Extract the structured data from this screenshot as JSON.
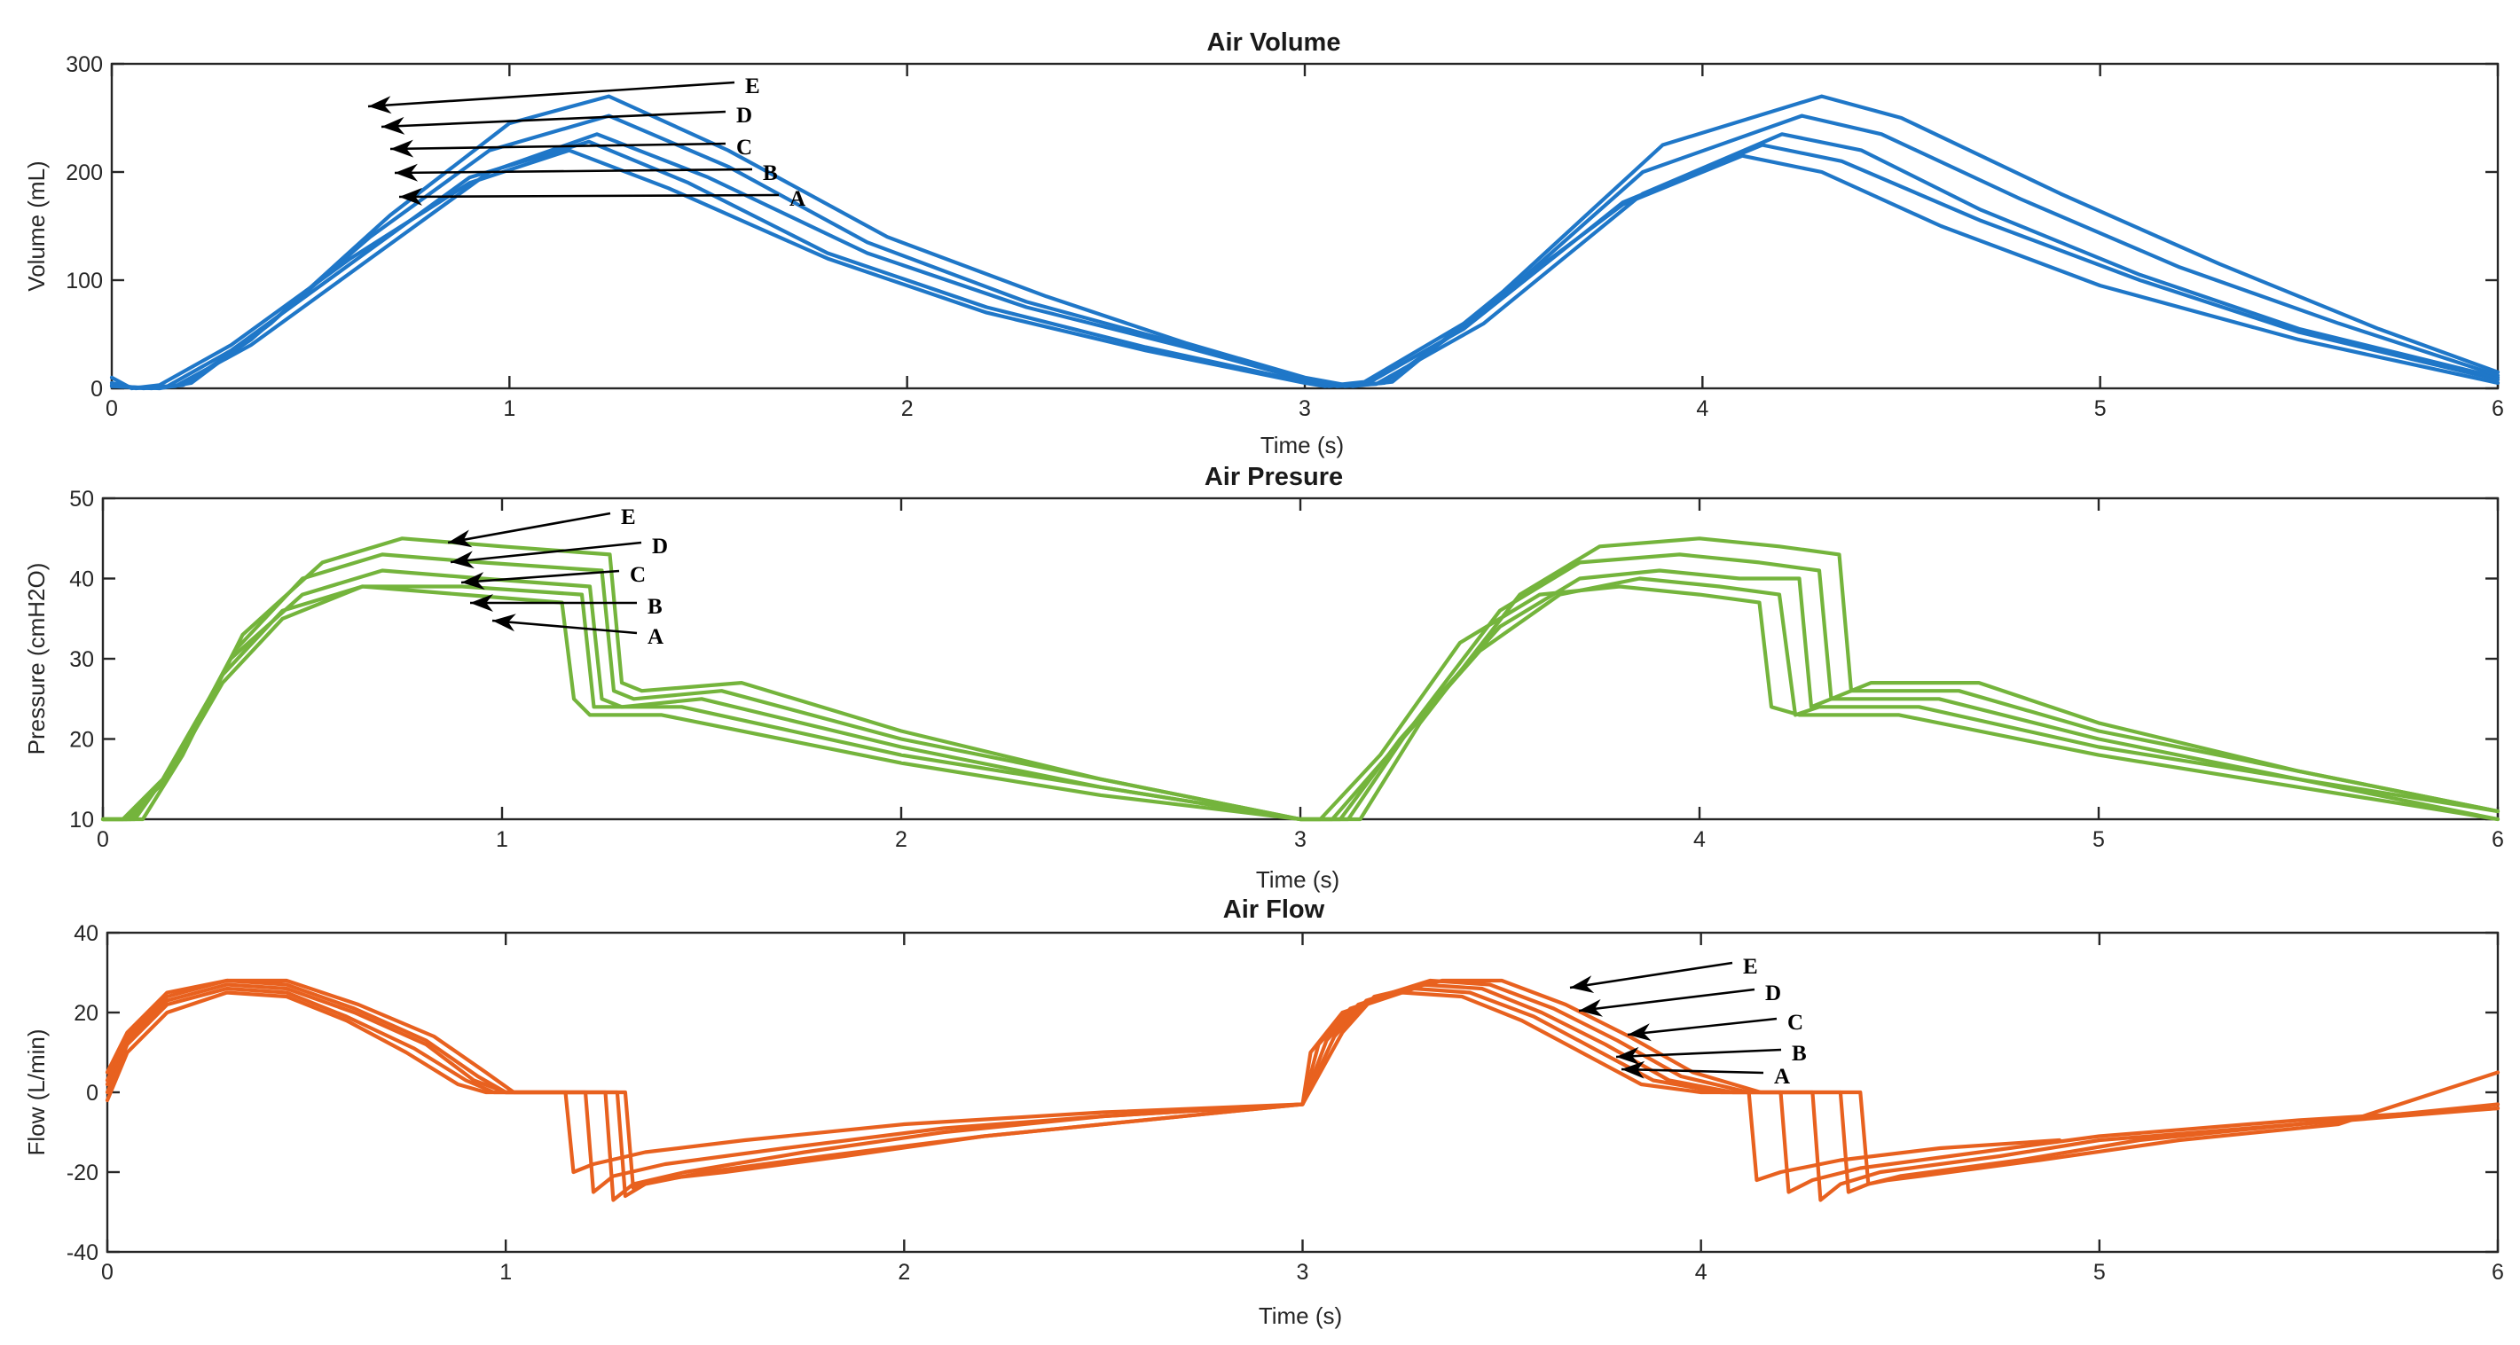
{
  "chart_data": [
    {
      "type": "line",
      "title": "Air Volume",
      "xlabel": "Time (s)",
      "ylabel": "Volume (mL)",
      "xlim": [
        0,
        6
      ],
      "ylim": [
        0,
        300
      ],
      "x_ticks": [
        "0",
        "1",
        "2",
        "3",
        "4",
        "5",
        "6"
      ],
      "y_ticks": [
        "0",
        "100",
        "200",
        "300"
      ],
      "color": "#1f77c8",
      "annotations": [
        "E",
        "D",
        "C",
        "B",
        "A"
      ],
      "series": [
        {
          "name": "A",
          "x": [
            0,
            0.05,
            0.12,
            0.3,
            0.6,
            0.9,
            1.15,
            1.4,
            1.8,
            2.2,
            2.6,
            3.0,
            3.05,
            3.15,
            3.4,
            3.8,
            4.1,
            4.3,
            4.6,
            5.0,
            5.5,
            6.0
          ],
          "values": [
            10,
            0,
            3,
            40,
            120,
            190,
            220,
            185,
            120,
            70,
            35,
            5,
            2,
            6,
            60,
            170,
            215,
            200,
            150,
            95,
            45,
            5
          ]
        },
        {
          "name": "B",
          "x": [
            0,
            0.06,
            0.14,
            0.3,
            0.6,
            0.9,
            1.2,
            1.45,
            1.8,
            2.2,
            2.6,
            3.0,
            3.06,
            3.16,
            3.4,
            3.8,
            4.15,
            4.35,
            4.7,
            5.1,
            5.5,
            6.0
          ],
          "values": [
            5,
            0,
            2,
            35,
            115,
            195,
            228,
            190,
            125,
            75,
            38,
            6,
            2,
            5,
            55,
            172,
            225,
            210,
            155,
            100,
            52,
            8
          ]
        },
        {
          "name": "C",
          "x": [
            0,
            0.08,
            0.16,
            0.35,
            0.65,
            0.95,
            1.22,
            1.5,
            1.9,
            2.3,
            2.7,
            3.0,
            3.08,
            3.18,
            3.45,
            3.85,
            4.2,
            4.4,
            4.7,
            5.1,
            5.5,
            6.0
          ],
          "values": [
            3,
            0,
            2,
            40,
            120,
            200,
            235,
            195,
            125,
            75,
            38,
            8,
            2,
            4,
            60,
            180,
            235,
            220,
            165,
            105,
            55,
            10
          ]
        },
        {
          "name": "D",
          "x": [
            0,
            0.1,
            0.18,
            0.35,
            0.65,
            0.95,
            1.25,
            1.55,
            1.9,
            2.3,
            2.7,
            3.0,
            3.1,
            3.2,
            3.45,
            3.85,
            4.25,
            4.45,
            4.8,
            5.2,
            5.6,
            6.0
          ],
          "values": [
            2,
            0,
            3,
            45,
            140,
            220,
            252,
            205,
            135,
            80,
            40,
            8,
            2,
            5,
            70,
            200,
            252,
            235,
            175,
            112,
            60,
            12
          ]
        },
        {
          "name": "E",
          "x": [
            0,
            0.12,
            0.2,
            0.4,
            0.7,
            1.0,
            1.25,
            1.55,
            1.95,
            2.35,
            2.7,
            3.0,
            3.12,
            3.22,
            3.5,
            3.9,
            4.3,
            4.5,
            4.9,
            5.3,
            5.7,
            6.0
          ],
          "values": [
            2,
            0,
            5,
            60,
            160,
            245,
            270,
            220,
            140,
            85,
            42,
            10,
            2,
            6,
            90,
            225,
            270,
            250,
            180,
            115,
            55,
            15
          ]
        }
      ]
    },
    {
      "type": "line",
      "title": "Air Presure",
      "xlabel": "Time (s)",
      "ylabel": "Pressure (cmH2O)",
      "xlim": [
        0,
        6
      ],
      "ylim": [
        10,
        50
      ],
      "x_ticks": [
        "0",
        "1",
        "2",
        "3",
        "4",
        "5",
        "6"
      ],
      "y_ticks": [
        "10",
        "20",
        "30",
        "40",
        "50"
      ],
      "color": "#74b43c",
      "annotations": [
        "E",
        "D",
        "C",
        "B",
        "A"
      ],
      "series": [
        {
          "name": "A",
          "x": [
            0,
            0.05,
            0.15,
            0.3,
            0.45,
            0.65,
            0.9,
            1.15,
            1.18,
            1.22,
            1.4,
            2.0,
            2.5,
            3.0,
            3.05,
            3.2,
            3.4,
            3.6,
            3.8,
            4.0,
            4.15,
            4.18,
            4.25,
            4.5,
            5.0,
            5.5,
            6.0
          ],
          "values": [
            10,
            10,
            15,
            28,
            36,
            39,
            38,
            37,
            25,
            23,
            23,
            17,
            13,
            10,
            10,
            18,
            32,
            38,
            39,
            38,
            37,
            24,
            23,
            23,
            18,
            14,
            10
          ]
        },
        {
          "name": "B",
          "x": [
            0,
            0.06,
            0.16,
            0.3,
            0.45,
            0.65,
            0.9,
            1.2,
            1.23,
            1.27,
            1.45,
            2.0,
            2.5,
            3.0,
            3.08,
            3.22,
            3.45,
            3.65,
            3.85,
            4.05,
            4.2,
            4.24,
            4.3,
            4.55,
            5.0,
            5.5,
            6.0
          ],
          "values": [
            10,
            10,
            15,
            27,
            35,
            39,
            39,
            38,
            24,
            24,
            24,
            18,
            14,
            10,
            10,
            18,
            31,
            38,
            40,
            39,
            38,
            23,
            24,
            24,
            19,
            15,
            10
          ]
        },
        {
          "name": "C",
          "x": [
            0,
            0.07,
            0.17,
            0.32,
            0.5,
            0.7,
            0.95,
            1.22,
            1.25,
            1.3,
            1.5,
            2.0,
            2.5,
            3.0,
            3.1,
            3.25,
            3.5,
            3.7,
            3.9,
            4.1,
            4.25,
            4.28,
            4.33,
            4.6,
            5.0,
            5.5,
            6.0
          ],
          "values": [
            10,
            10,
            16,
            30,
            38,
            41,
            40,
            39,
            25,
            24,
            25,
            19,
            14,
            10,
            10,
            20,
            34,
            40,
            41,
            40,
            40,
            24,
            25,
            25,
            20,
            15,
            11
          ]
        },
        {
          "name": "D",
          "x": [
            0,
            0.08,
            0.18,
            0.33,
            0.5,
            0.7,
            0.95,
            1.25,
            1.28,
            1.33,
            1.55,
            2.0,
            2.5,
            3.0,
            3.12,
            3.27,
            3.5,
            3.7,
            3.95,
            4.15,
            4.3,
            4.33,
            4.38,
            4.65,
            5.0,
            5.5,
            6.0
          ],
          "values": [
            10,
            10,
            17,
            31,
            40,
            43,
            42,
            41,
            26,
            25,
            26,
            20,
            15,
            10,
            10,
            21,
            36,
            42,
            43,
            42,
            41,
            25,
            26,
            26,
            21,
            16,
            11
          ]
        },
        {
          "name": "E",
          "x": [
            0,
            0.1,
            0.2,
            0.35,
            0.55,
            0.75,
            1.0,
            1.27,
            1.3,
            1.35,
            1.6,
            2.0,
            2.5,
            3.0,
            3.15,
            3.3,
            3.55,
            3.75,
            4.0,
            4.2,
            4.35,
            4.38,
            4.43,
            4.7,
            5.0,
            5.5,
            6.0
          ],
          "values": [
            10,
            10,
            18,
            33,
            42,
            45,
            44,
            43,
            27,
            26,
            27,
            21,
            15,
            10,
            10,
            22,
            38,
            44,
            45,
            44,
            43,
            26,
            27,
            27,
            22,
            16,
            11
          ]
        }
      ]
    },
    {
      "type": "line",
      "title": "Air Flow",
      "xlabel": "Time (s)",
      "ylabel": "Flow (L/min)",
      "xlim": [
        0,
        6
      ],
      "ylim": [
        -40,
        40
      ],
      "x_ticks": [
        "0",
        "1",
        "2",
        "3",
        "4",
        "5",
        "6"
      ],
      "y_ticks": [
        "-40",
        "-20",
        "0",
        "20",
        "40"
      ],
      "color": "#e8611f",
      "annotations": [
        "E",
        "D",
        "C",
        "B",
        "A"
      ],
      "series": [
        {
          "name": "A",
          "x": [
            0,
            0.05,
            0.15,
            0.3,
            0.45,
            0.6,
            0.75,
            0.88,
            0.95,
            1.15,
            1.17,
            1.22,
            1.35,
            1.6,
            2.0,
            2.5,
            3.0,
            3.02,
            3.1,
            3.25,
            3.4,
            3.55,
            3.7,
            3.85,
            4.0,
            4.12,
            4.14,
            4.2,
            4.35,
            4.6,
            4.9
          ],
          "values": [
            -2,
            10,
            20,
            25,
            24,
            18,
            10,
            2,
            0,
            0,
            -20,
            -18,
            -15,
            -12,
            -8,
            -5,
            -3,
            10,
            20,
            25,
            24,
            18,
            10,
            2,
            0,
            0,
            -22,
            -20,
            -17,
            -14,
            -12
          ]
        },
        {
          "name": "B",
          "x": [
            0,
            0.05,
            0.15,
            0.3,
            0.45,
            0.6,
            0.77,
            0.9,
            0.97,
            1.2,
            1.22,
            1.27,
            1.4,
            1.7,
            2.1,
            2.5,
            3.0,
            3.04,
            3.12,
            3.28,
            3.42,
            3.58,
            3.73,
            3.88,
            4.05,
            4.2,
            4.22,
            4.28,
            4.4,
            4.7,
            5.0,
            5.5,
            6.0
          ],
          "values": [
            0,
            12,
            22,
            26,
            25,
            19,
            11,
            3,
            0,
            0,
            -25,
            -21,
            -18,
            -14,
            -9,
            -6,
            -3,
            12,
            21,
            26,
            25,
            19,
            11,
            3,
            0,
            0,
            -25,
            -22,
            -19,
            -15,
            -11,
            -7,
            -4
          ]
        },
        {
          "name": "C",
          "x": [
            0,
            0.05,
            0.15,
            0.3,
            0.45,
            0.62,
            0.8,
            0.92,
            1.0,
            1.25,
            1.27,
            1.32,
            1.45,
            1.75,
            2.1,
            2.5,
            3.0,
            3.06,
            3.14,
            3.3,
            3.45,
            3.6,
            3.76,
            3.92,
            4.08,
            4.28,
            4.3,
            4.35,
            4.45,
            4.75,
            5.0,
            5.5,
            6.0
          ],
          "values": [
            2,
            13,
            23,
            27,
            26,
            20,
            12,
            3,
            0,
            0,
            -27,
            -23,
            -20,
            -15,
            -10,
            -6,
            -3,
            13,
            22,
            27,
            26,
            20,
            12,
            3,
            0,
            0,
            -27,
            -23,
            -20,
            -16,
            -12,
            -8,
            -4
          ]
        },
        {
          "name": "D",
          "x": [
            0,
            0.05,
            0.15,
            0.3,
            0.45,
            0.62,
            0.8,
            0.93,
            1.0,
            1.28,
            1.3,
            1.35,
            1.5,
            1.8,
            2.2,
            2.6,
            3.0,
            3.08,
            3.16,
            3.32,
            3.47,
            3.63,
            3.79,
            3.95,
            4.12,
            4.35,
            4.37,
            4.42,
            4.5,
            4.8,
            5.1,
            5.5,
            6.0
          ],
          "values": [
            3,
            14,
            24,
            28,
            27,
            21,
            13,
            4,
            0,
            0,
            -26,
            -23,
            -20,
            -16,
            -11,
            -7,
            -3,
            14,
            23,
            28,
            27,
            21,
            13,
            4,
            0,
            0,
            -25,
            -23,
            -21,
            -17,
            -12,
            -8,
            -3
          ]
        },
        {
          "name": "E",
          "x": [
            0,
            0.05,
            0.15,
            0.3,
            0.45,
            0.63,
            0.82,
            0.95,
            1.02,
            1.3,
            1.32,
            1.37,
            1.55,
            1.85,
            2.2,
            2.6,
            3.0,
            3.1,
            3.18,
            3.35,
            3.5,
            3.66,
            3.82,
            3.98,
            4.15,
            4.4,
            4.42,
            4.47,
            4.55,
            4.85,
            5.2,
            5.6,
            6.0
          ],
          "values": [
            5,
            15,
            25,
            28,
            28,
            22,
            14,
            5,
            0,
            0,
            -24,
            -22,
            -20,
            -16,
            -11,
            -7,
            -3,
            15,
            24,
            28,
            28,
            22,
            14,
            5,
            0,
            0,
            -23,
            -22,
            -21,
            -17,
            -12,
            -8,
            5
          ]
        }
      ]
    }
  ]
}
